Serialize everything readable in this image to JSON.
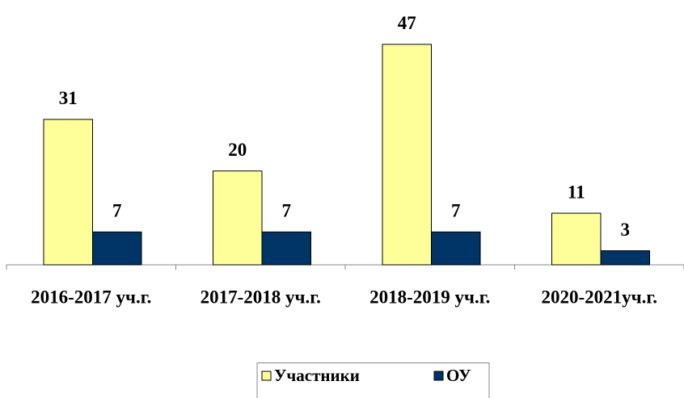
{
  "chart_data": {
    "type": "bar",
    "categories": [
      "2016-2017 уч.г.",
      "2017-2018 уч.г.",
      "2018-2019 уч.г.",
      "2020-2021уч.г."
    ],
    "series": [
      {
        "name": "Участники",
        "color": "#ffff99",
        "values": [
          31,
          20,
          47,
          11
        ]
      },
      {
        "name": "ОУ",
        "color": "#003366",
        "values": [
          7,
          7,
          7,
          3
        ]
      }
    ],
    "ylim": [
      0,
      50
    ],
    "legend": "bottom"
  }
}
